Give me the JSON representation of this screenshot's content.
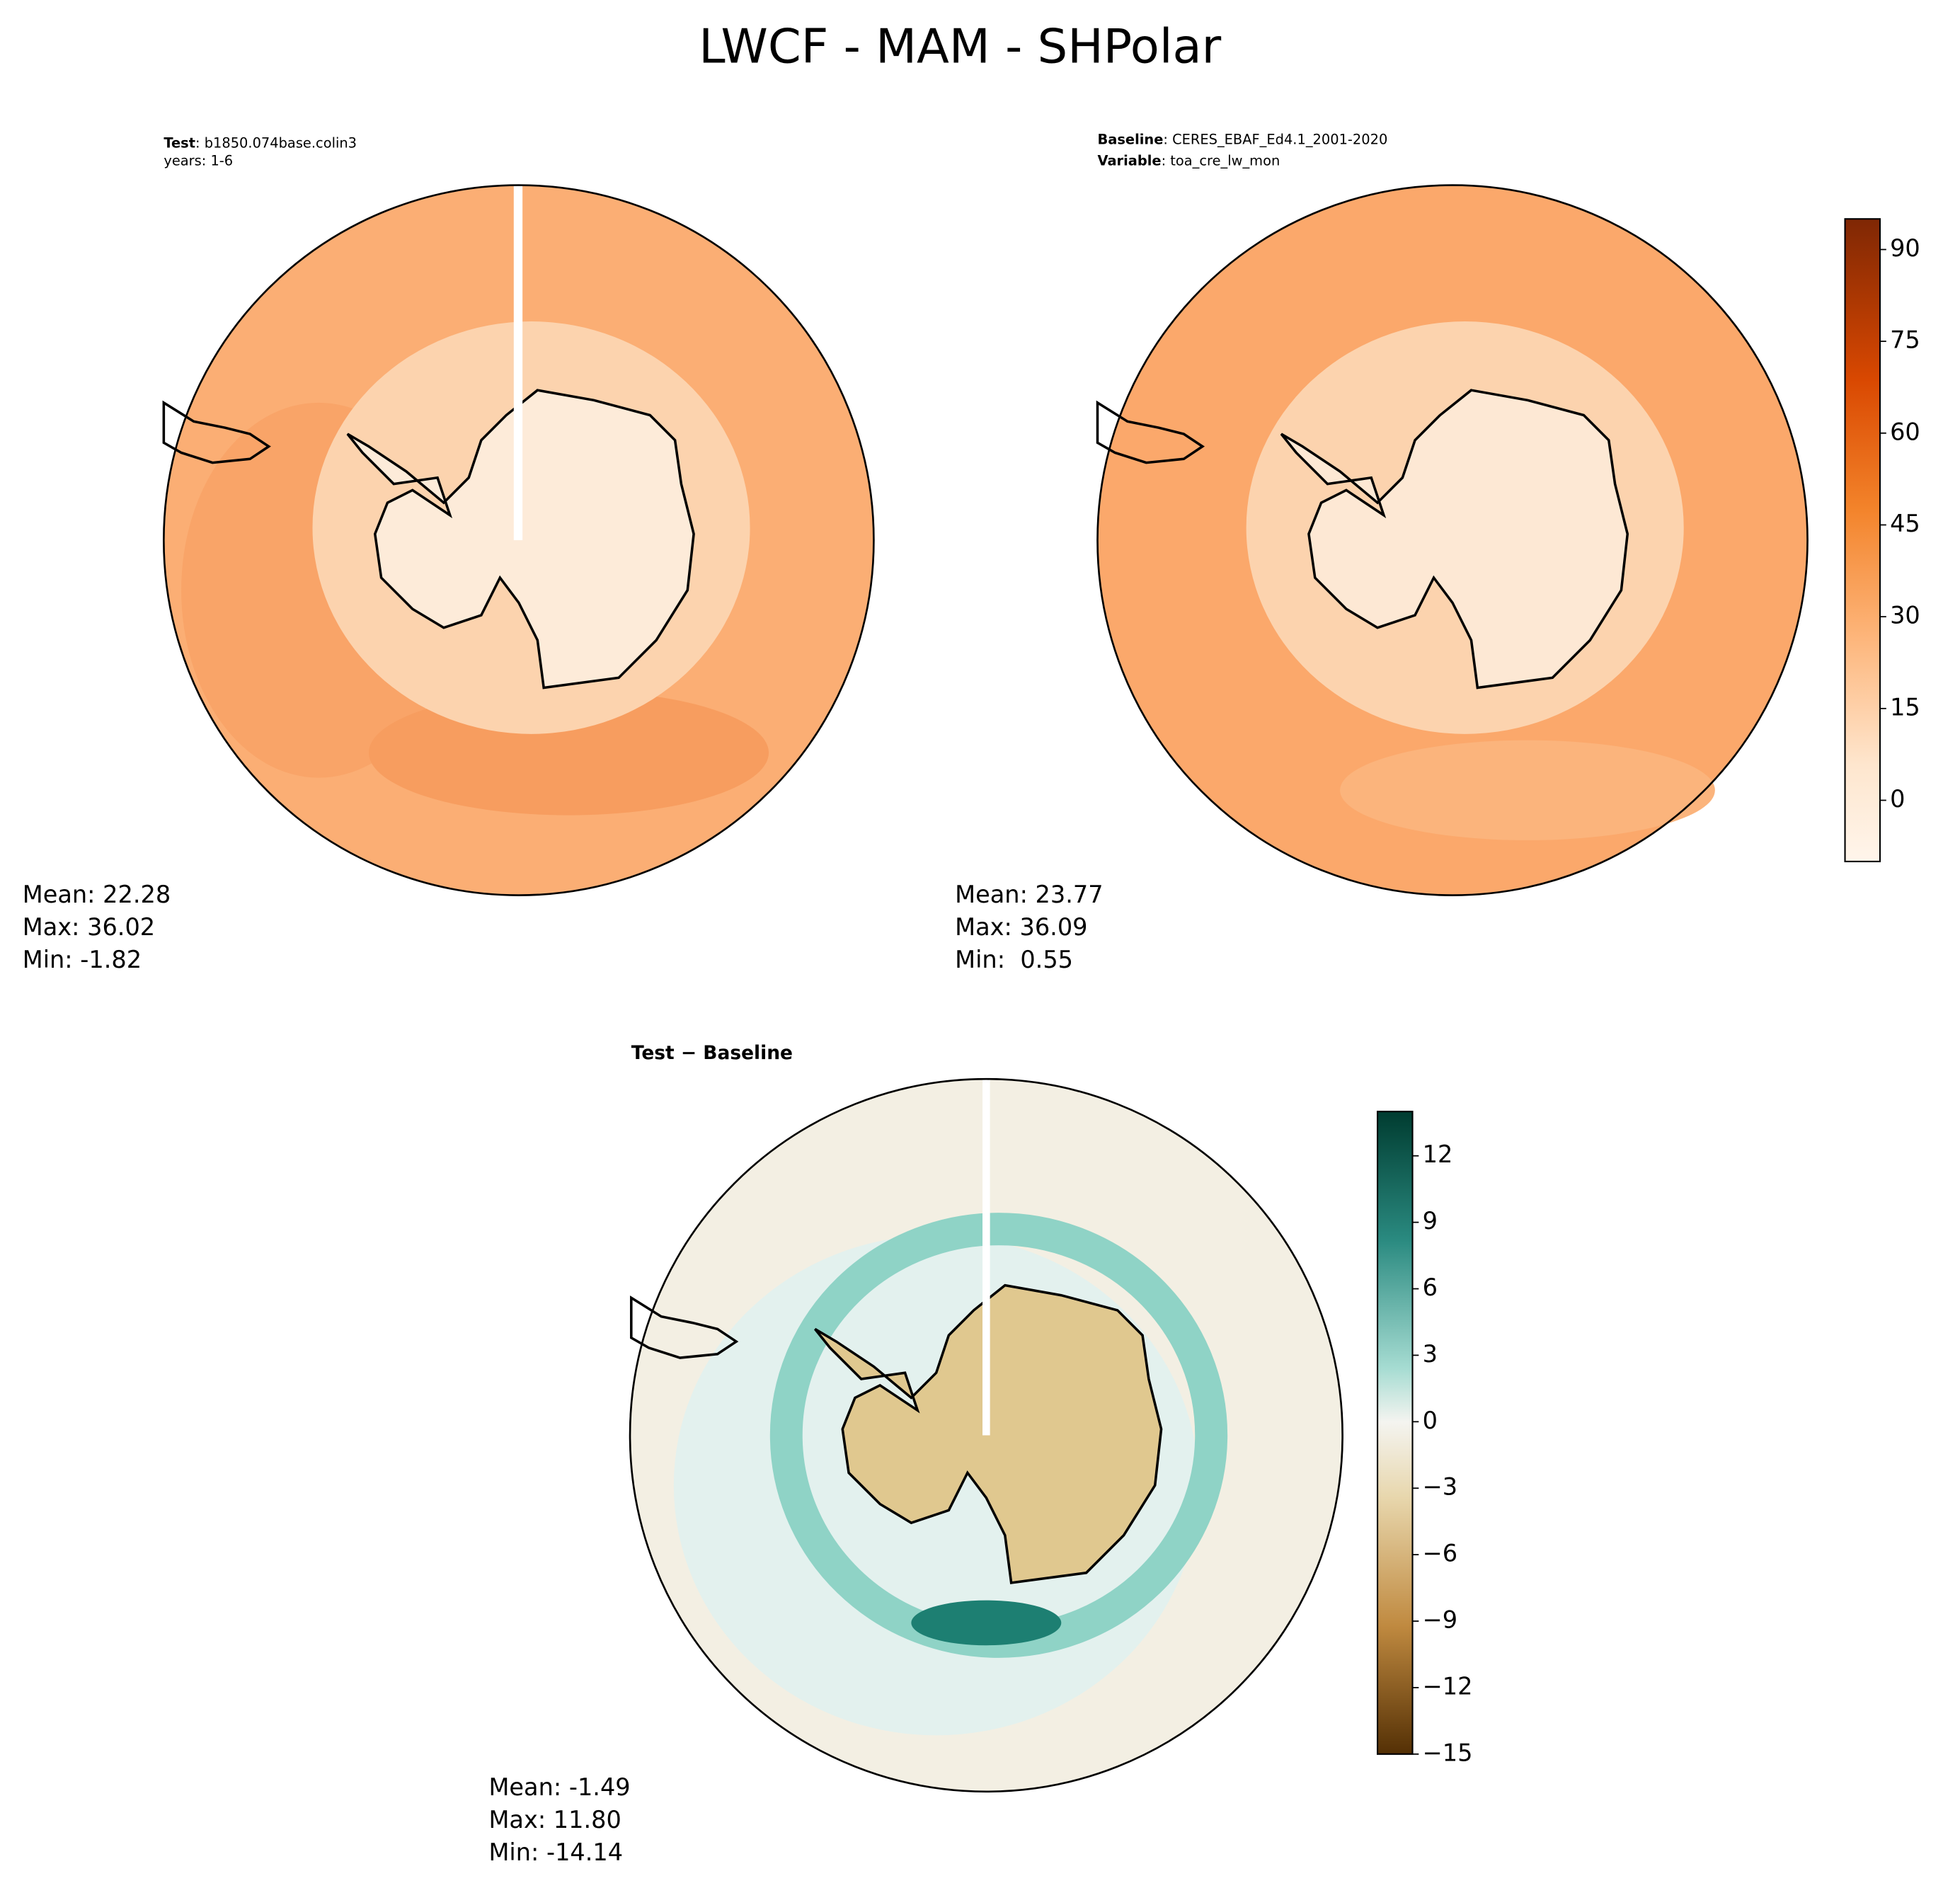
{
  "title": "LWCF - MAM - SHPolar",
  "panels": [
    {
      "header": [
        {
          "label": "Test",
          "text": ": b1850.074base.colin3"
        },
        {
          "text": "years: 1-6"
        }
      ],
      "stats": [
        "Mean: 22.28",
        "Max: 36.02",
        "Min: -1.82"
      ]
    },
    {
      "header": [
        {
          "label": "Baseline",
          "text": ": CERES_EBAF_Ed4.1_2001-2020"
        },
        {
          "label": "Variable",
          "text": ": toa_cre_lw_mon"
        }
      ],
      "stats": [
        "Mean: 23.77",
        "Max: 36.09",
        "Min:  0.55"
      ]
    },
    {
      "header": [
        {
          "label": "Test − Baseline"
        }
      ],
      "stats": [
        "Mean: -1.49",
        "Max: 11.80",
        "Min: -14.14"
      ]
    }
  ],
  "colorbars": [
    {
      "ylim": [
        -10,
        95
      ],
      "yticks": [
        0,
        15,
        30,
        45,
        60,
        75,
        90
      ]
    },
    {
      "ylim": [
        -15,
        14
      ],
      "yticks": [
        {
          "value": -15,
          "label": "−15"
        },
        {
          "value": -12,
          "label": "−12"
        },
        {
          "value": -9,
          "label": "−9"
        },
        {
          "value": -6,
          "label": "−6"
        },
        {
          "value": -3,
          "label": "−3"
        },
        0,
        3,
        6,
        9,
        12
      ]
    }
  ]
}
